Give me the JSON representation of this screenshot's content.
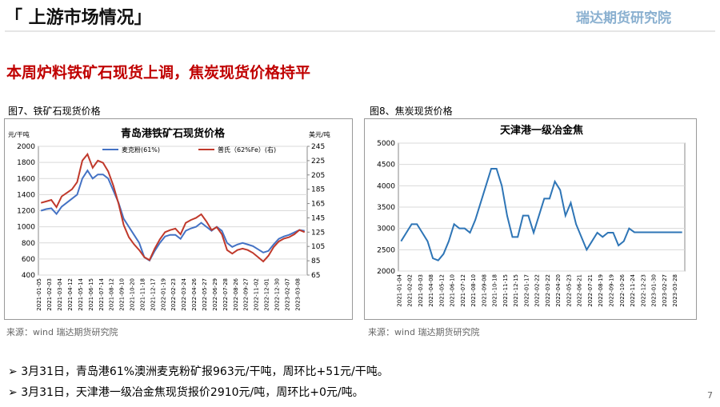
{
  "header": {
    "title": "「 上游市场情况」",
    "logo": "瑞达期货研究院"
  },
  "subtitle": "本周炉料铁矿石现货上调，焦炭现货价格持平",
  "figures": [
    {
      "caption": "图7、铁矿石现货价格",
      "source": "来源：wind    瑞达期货研究院"
    },
    {
      "caption": "图8、焦炭现货价格",
      "source": "来源：wind    瑞达期货研究院"
    }
  ],
  "bullets": [
    "3月31日，青岛港61%澳洲麦克粉矿报963元/干吨，周环比+51元/干吨。",
    "3月31日，天津港一级冶金焦现货报价2910元/吨，周环比+0元/吨。"
  ],
  "page_number": "7",
  "chart_data": [
    {
      "type": "line",
      "title": "青岛港铁矿石现货价格",
      "ylabel": "元/干吨",
      "y2label": "美元/吨",
      "categories": [
        "2021-01-05",
        null,
        "2021-02-03",
        null,
        "2021-03-04",
        null,
        "2021-04-12",
        null,
        "2021-05-14",
        null,
        "2021-06-15",
        null,
        "2021-07-14",
        null,
        "2021-08-12",
        null,
        "2021-09-10",
        null,
        "2021-10-20",
        null,
        "2021-11-18",
        null,
        "2021-12-17",
        null,
        "2022-01-19",
        null,
        "2022-02-23",
        null,
        "2022-03-24",
        null,
        "2022-04-26",
        null,
        "2022-05-27",
        null,
        "2022-06-29",
        null,
        "2022-07-28",
        null,
        "2022-08-26",
        null,
        "2022-09-27",
        null,
        "2022-11-02",
        null,
        "2022-12-01",
        null,
        "2022-12-30",
        null,
        "2023-02-07",
        null,
        "2023-03-08",
        null
      ],
      "series": [
        {
          "name": "麦克粉(61%)",
          "color": "#4472c4",
          "values": [
            1200,
            1220,
            1230,
            1160,
            1250,
            1300,
            1350,
            1400,
            1600,
            1700,
            1600,
            1650,
            1650,
            1600,
            1450,
            1300,
            1100,
            1000,
            900,
            800,
            620,
            580,
            700,
            800,
            880,
            900,
            900,
            850,
            950,
            980,
            1000,
            1050,
            1000,
            950,
            1000,
            950,
            800,
            750,
            780,
            800,
            780,
            760,
            720,
            680,
            700,
            780,
            850,
            880,
            900,
            930,
            960,
            950
          ]
        },
        {
          "name": "普氏（62%Fe）(右)",
          "color": "#c0392b",
          "axis": "y2",
          "values": [
            166,
            168,
            170,
            160,
            175,
            180,
            185,
            195,
            225,
            234,
            215,
            225,
            222,
            210,
            190,
            165,
            135,
            118,
            108,
            100,
            90,
            86,
            102,
            115,
            125,
            128,
            130,
            122,
            138,
            142,
            145,
            150,
            140,
            128,
            132,
            122,
            100,
            95,
            100,
            102,
            100,
            96,
            90,
            84,
            92,
            104,
            112,
            116,
            118,
            122,
            128,
            125
          ]
        }
      ],
      "ylim": [
        400,
        2000
      ],
      "yticks": [
        400,
        600,
        800,
        1000,
        1200,
        1400,
        1600,
        1800,
        2000
      ],
      "y2lim": [
        65,
        245
      ],
      "y2ticks": [
        65,
        85,
        105,
        125,
        145,
        165,
        185,
        205,
        225,
        245
      ],
      "grid": true,
      "legend": "top"
    },
    {
      "type": "line",
      "title": "天津港一级冶金焦",
      "categories": [
        "2021-01-04",
        null,
        "2021-02-02",
        null,
        "2021-03-03",
        null,
        "2021-04-08",
        null,
        "2021-05-12",
        null,
        "2021-06-10",
        null,
        "2021-07-12",
        null,
        "2021-08-10",
        null,
        "2021-09-08",
        null,
        "2021-10-18",
        null,
        "2021-11-15",
        null,
        "2021-12-15",
        null,
        "2022-01-17",
        null,
        "2022-02-22",
        null,
        "2022-03-22",
        null,
        "2022-04-20",
        null,
        "2022-05-23",
        null,
        "2022-06-21",
        null,
        "2022-07-21",
        null,
        "2022-08-19",
        null,
        "2022-09-19",
        null,
        "2022-10-26",
        null,
        "2022-11-24",
        null,
        "2022-12-23",
        null,
        "2023-01-30",
        null,
        "2023-02-27",
        null,
        "2023-03-28",
        null
      ],
      "series": [
        {
          "name": "天津港一级冶金焦",
          "color": "#2e75b6",
          "values": [
            2700,
            2900,
            3100,
            3100,
            2900,
            2700,
            2300,
            2250,
            2400,
            2700,
            3100,
            3000,
            3000,
            2900,
            3200,
            3600,
            4000,
            4400,
            4400,
            4000,
            3300,
            2800,
            2800,
            3300,
            3300,
            2900,
            3300,
            3700,
            3700,
            4100,
            3900,
            3300,
            3600,
            3100,
            2800,
            2500,
            2700,
            2900,
            2800,
            2900,
            2900,
            2600,
            2700,
            3000,
            2910,
            2910,
            2910,
            2910,
            2910,
            2910,
            2910,
            2910,
            2910,
            2910
          ]
        }
      ],
      "ylim": [
        2000,
        5000
      ],
      "yticks": [
        2000,
        2500,
        3000,
        3500,
        4000,
        4500,
        5000
      ],
      "grid": true
    }
  ]
}
